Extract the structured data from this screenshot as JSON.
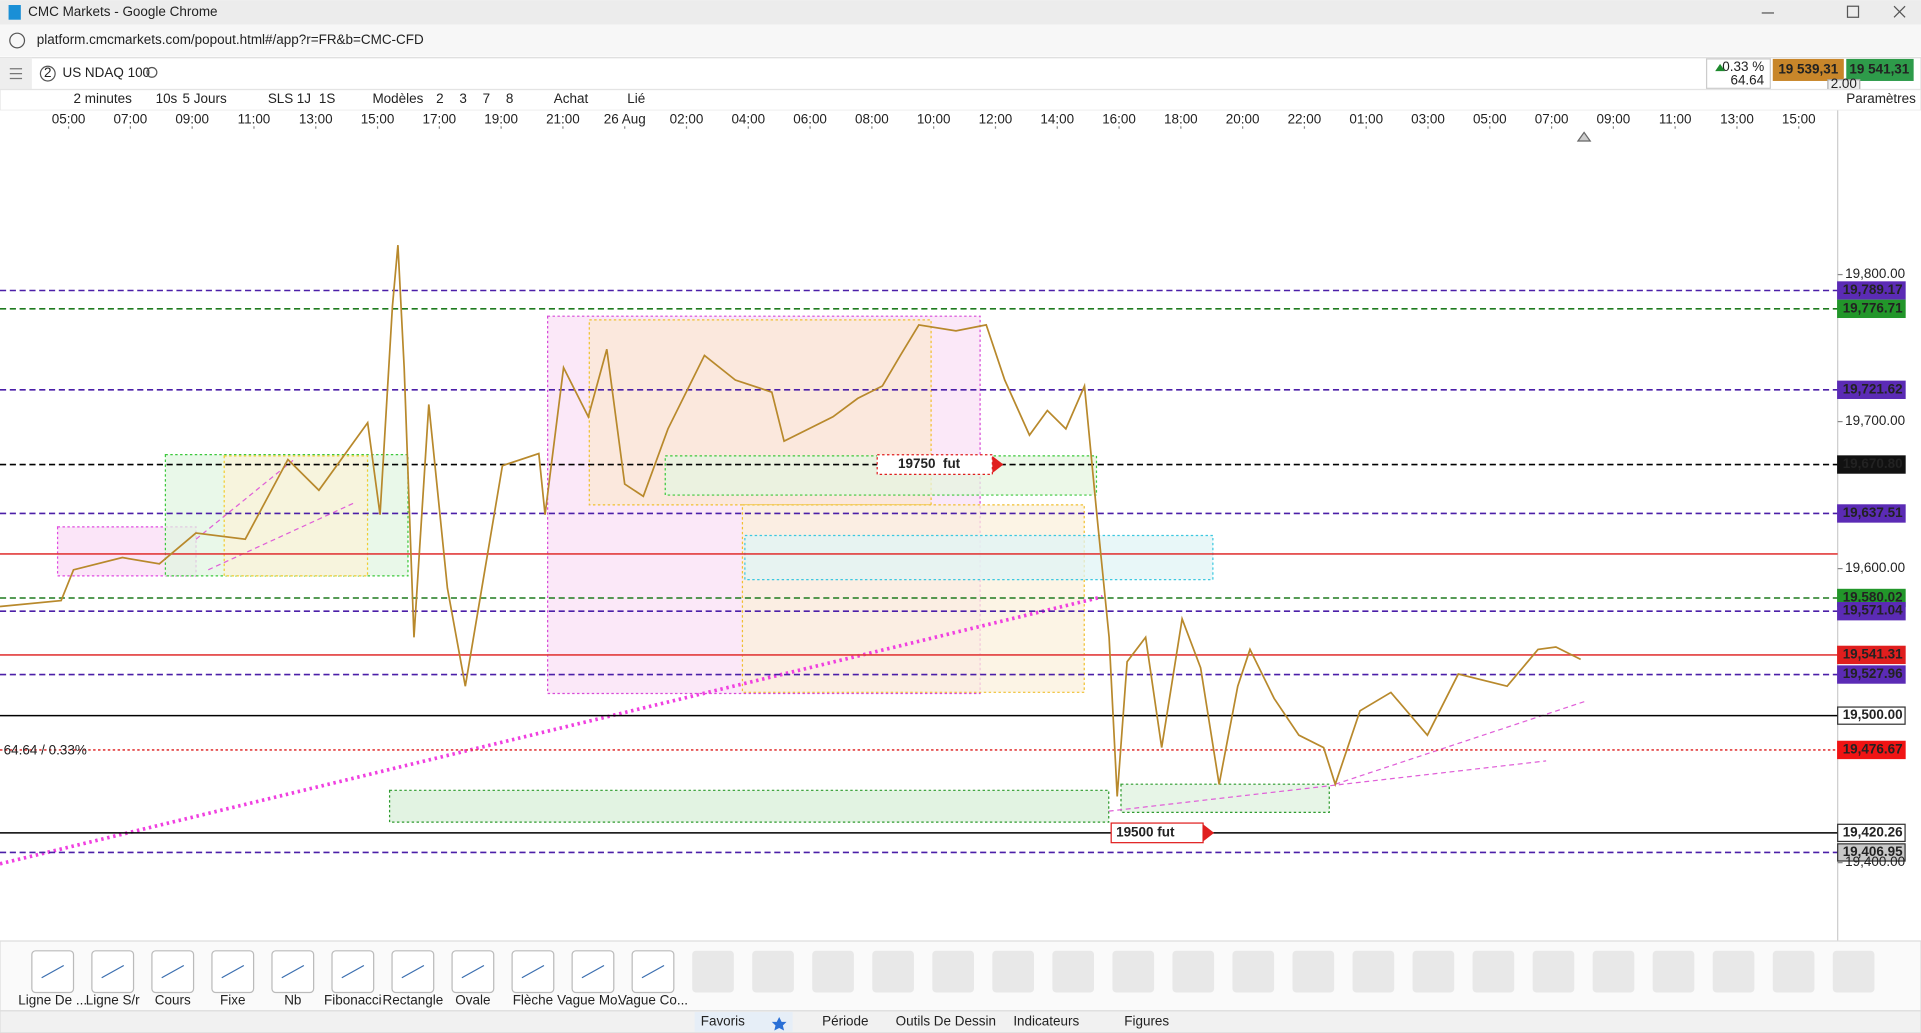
{
  "window": {
    "title": "CMC Markets - Google Chrome",
    "url": "platform.cmcmarkets.com/popout.html#/app?r=FR&b=CMC-CFD"
  },
  "product": {
    "tab_number": "2",
    "name": "US NDAQ 100",
    "change_pct": "0.33 %",
    "change": "64.64",
    "sell": "19 539,31",
    "buy": "19 541,31",
    "spread": "2.00"
  },
  "toolbar": {
    "interval": "2 minutes",
    "interval_short": "10s",
    "range": "5 Jours",
    "range_buttons": [
      "SLS",
      "1J",
      "1S"
    ],
    "templates": "Modèles",
    "template_buttons": [
      "2",
      "3",
      "7",
      "8"
    ],
    "buy": "Achat",
    "link": "Lié",
    "settings": "Paramètres"
  },
  "chart": {
    "type": "line",
    "xlim": [
      -1.11,
      28.63
    ],
    "xticks": [
      {
        "value": 0,
        "label": "05:00"
      },
      {
        "value": 1,
        "label": "07:00"
      },
      {
        "value": 2,
        "label": "09:00"
      },
      {
        "value": 3,
        "label": "11:00"
      },
      {
        "value": 4,
        "label": "13:00"
      },
      {
        "value": 5,
        "label": "15:00"
      },
      {
        "value": 6,
        "label": "17:00"
      },
      {
        "value": 7,
        "label": "19:00"
      },
      {
        "value": 8,
        "label": "21:00"
      },
      {
        "value": 9,
        "label": "26 Aug"
      },
      {
        "value": 10,
        "label": "02:00"
      },
      {
        "value": 11,
        "label": "04:00"
      },
      {
        "value": 12,
        "label": "06:00"
      },
      {
        "value": 13,
        "label": "08:00"
      },
      {
        "value": 14,
        "label": "10:00"
      },
      {
        "value": 15,
        "label": "12:00"
      },
      {
        "value": 16,
        "label": "14:00"
      },
      {
        "value": 17,
        "label": "16:00"
      },
      {
        "value": 18,
        "label": "18:00"
      },
      {
        "value": 19,
        "label": "20:00"
      },
      {
        "value": 20,
        "label": "22:00"
      },
      {
        "value": 21,
        "label": "01:00"
      },
      {
        "value": 22,
        "label": "03:00"
      },
      {
        "value": 23,
        "label": "05:00"
      },
      {
        "value": 24,
        "label": "07:00"
      },
      {
        "value": 25,
        "label": "09:00"
      },
      {
        "value": 26,
        "label": "11:00"
      },
      {
        "value": 27,
        "label": "13:00"
      },
      {
        "value": 28,
        "label": "15:00"
      }
    ],
    "ylim": [
      19346.7,
      19899.2
    ],
    "yticks": [
      {
        "value": 19800,
        "label": "19,800.00"
      },
      {
        "value": 19700,
        "label": "19,700.00"
      },
      {
        "value": 19600,
        "label": "19,600.00"
      },
      {
        "value": 19400,
        "label": "19,400.00"
      }
    ],
    "price": {
      "color": "#b8892c",
      "x": [
        -1.11,
        -0.12,
        0.08,
        0.87,
        1.47,
        2.06,
        2.86,
        3.55,
        4.05,
        4.84,
        5.04,
        5.24,
        5.33,
        5.43,
        5.59,
        5.83,
        6.13,
        6.42,
        6.62,
        7.02,
        7.61,
        7.71,
        8.01,
        8.41,
        8.71,
        9.0,
        9.3,
        9.7,
        10.29,
        10.79,
        11.38,
        11.58,
        12.37,
        12.77,
        13.17,
        13.46,
        13.76,
        14.36,
        14.85,
        15.15,
        15.55,
        15.84,
        16.14,
        16.44,
        16.64,
        16.84,
        16.97,
        17.13,
        17.43,
        17.69,
        18.02,
        18.32,
        18.62,
        18.92,
        19.12,
        19.51,
        19.91,
        20.31,
        20.5,
        20.9,
        21.4,
        21.99,
        22.49,
        23.28,
        23.78,
        24.07,
        24.47
      ],
      "values": [
        19574.2,
        19578.3,
        19599.2,
        19607.5,
        19603.3,
        19624.2,
        19620.0,
        19674.2,
        19653.3,
        19699.2,
        19636.7,
        19778.3,
        19820.0,
        19736.7,
        19553.3,
        19711.7,
        19586.7,
        19520.0,
        19570.0,
        19670.0,
        19678.3,
        19636.7,
        19736.7,
        19703.3,
        19749.2,
        19657.5,
        19649.2,
        19695.0,
        19745.0,
        19728.3,
        19720.0,
        19686.7,
        19703.3,
        19715.8,
        19724.2,
        19745.0,
        19765.8,
        19761.7,
        19765.8,
        19728.3,
        19690.8,
        19707.5,
        19695.0,
        19724.2,
        19636.7,
        19553.3,
        19445.0,
        19536.7,
        19553.3,
        19478.3,
        19565.8,
        19532.5,
        19453.3,
        19520.0,
        19545.0,
        19511.7,
        19486.7,
        19478.3,
        19453.3,
        19503.3,
        19515.8,
        19486.7,
        19528.3,
        19520.0,
        19545.0,
        19546.7,
        19538.3
      ]
    },
    "levels": [
      {
        "value": 19789.17,
        "label": "19,789.17",
        "color": "#4b1fa8",
        "style": "dashed",
        "label_fill": "#5b2bb5"
      },
      {
        "value": 19776.71,
        "label": "19,776.71",
        "color": "#1e7a1e",
        "style": "dashed",
        "label_fill": "#22962a"
      },
      {
        "value": 19721.62,
        "label": "19,721.62",
        "color": "#4b1fa8",
        "style": "dashed",
        "label_fill": "#5b2bb5"
      },
      {
        "value": 19670.8,
        "label": "19,670.80",
        "color": "#000000",
        "style": "dashed",
        "label_fill": "#111111"
      },
      {
        "value": 19637.51,
        "label": "19,637.51",
        "color": "#4b1fa8",
        "style": "dashed",
        "label_fill": "#5b2bb5"
      },
      {
        "value": 19610.0,
        "color": "#e23b3b",
        "style": "solid"
      },
      {
        "value": 19580.02,
        "label": "19,580.02",
        "color": "#1e7a1e",
        "style": "dashed",
        "label_fill": "#22962a"
      },
      {
        "value": 19571.04,
        "label": "19,571.04",
        "color": "#4b1fa8",
        "style": "dashed",
        "label_fill": "#5b2bb5"
      },
      {
        "value": 19541.31,
        "label": "19,541.31",
        "color": "#e23b3b",
        "style": "solid",
        "label_fill": "#e01e1e"
      },
      {
        "value": 19527.96,
        "label": "19,527.96",
        "color": "#4b1fa8",
        "style": "dashed",
        "label_fill": "#5b2bb5"
      },
      {
        "value": 19500.0,
        "label": "19,500.00",
        "color": "#000000",
        "style": "solid",
        "label_fill": "#ffffff"
      },
      {
        "value": 19476.67,
        "label": "19,476.67",
        "color": "#e23b3b",
        "style": "dotted",
        "label_fill": "#f01414"
      },
      {
        "value": 19420.26,
        "label": "19,420.26",
        "color": "#000000",
        "style": "solid",
        "label_fill": "#ffffff"
      },
      {
        "value": 19406.95,
        "label": "19,406.95",
        "color": "#4b1fa8",
        "style": "dashed",
        "label_fill": "#c8c8c8"
      }
    ],
    "annotations": {
      "change": "64.64 / 0.33%",
      "order_high": "19750  fut",
      "order_low": "19500 fut"
    }
  },
  "drawing_tools": [
    "Ligne De ...",
    "Ligne S/r",
    "Cours",
    "Fixe",
    "Nb",
    "Fibonacci",
    "Rectangle",
    "Ovale",
    "Flèche",
    "Vague Mo...",
    "Vague Co..."
  ],
  "bottom_tabs": [
    "Favoris",
    "Période",
    "Outils De Dessin",
    "Indicateurs",
    "Figures"
  ]
}
